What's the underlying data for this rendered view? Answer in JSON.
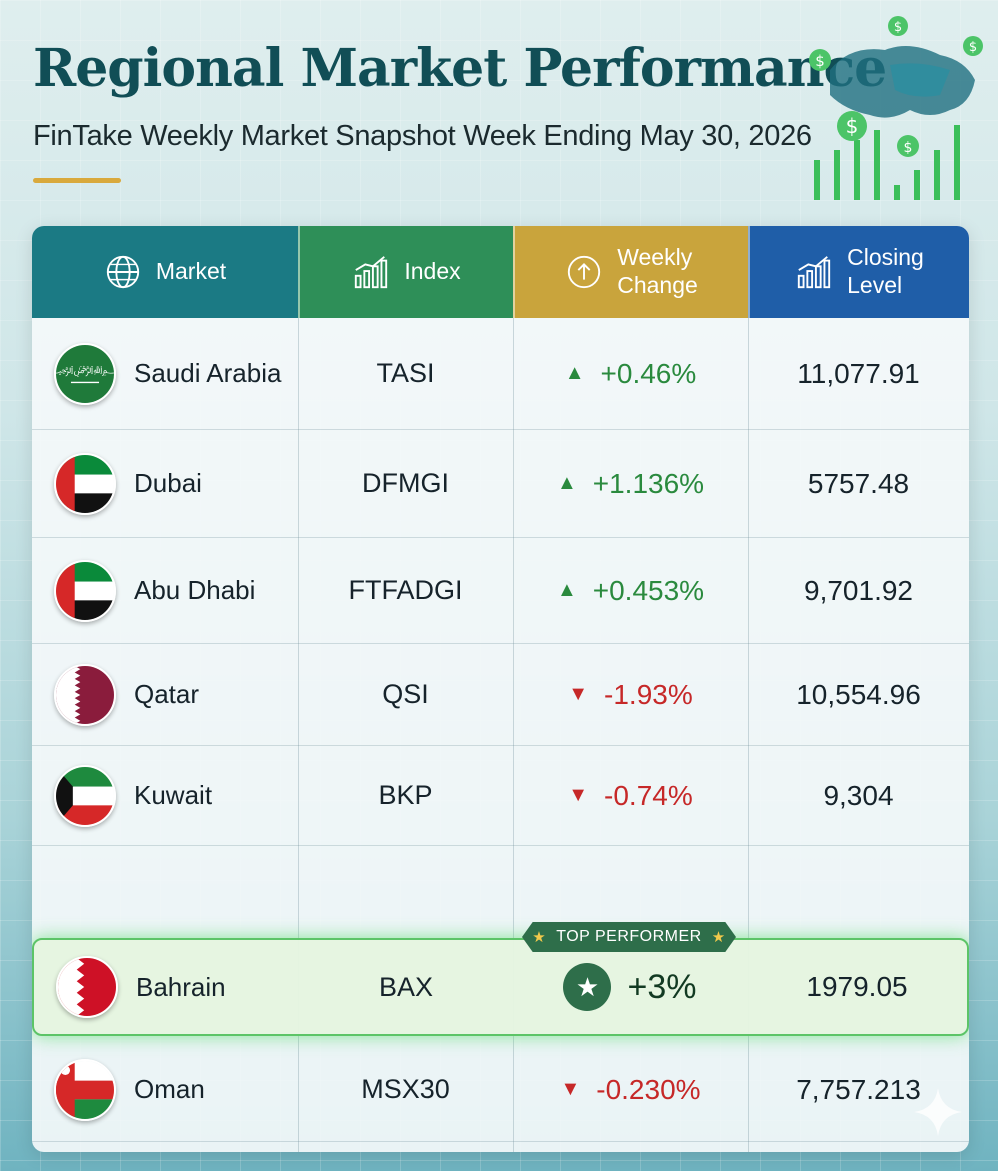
{
  "title": "Regional Market Performance",
  "subtitle": "FinTake Weekly Market Snapshot Week Ending May 30, 2026",
  "colors": {
    "title": "#114e56",
    "header_market": "#1b7a84",
    "header_index": "#2e8f58",
    "header_change": "#c9a43c",
    "header_close": "#1f5ea8",
    "positive": "#2a8a3e",
    "negative": "#c62828",
    "highlight": "#5cc467"
  },
  "table": {
    "headers": {
      "market": "Market",
      "index": "Index",
      "change_line1": "Weekly",
      "change_line2": "Change",
      "close_line1": "Closing",
      "close_line2": "Level"
    },
    "header_icons": {
      "market": "globe-icon",
      "index": "bar-chart-icon",
      "change": "arrow-up-circle-icon",
      "close": "bar-chart-icon"
    },
    "rows": [
      {
        "market": "Saudi Arabia",
        "index": "TASI",
        "change": "+0.46%",
        "direction": "up",
        "close": "11,077.91",
        "flag": "saudi-flag-icon"
      },
      {
        "market": "Dubai",
        "index": "DFMGI",
        "change": "+1.136%",
        "direction": "up",
        "close": "5757.48",
        "flag": "uae-flag-icon"
      },
      {
        "market": "Abu Dhabi",
        "index": "FTFADGI",
        "change": "+0.453%",
        "direction": "up",
        "close": "9,701.92",
        "flag": "uae-flag-icon"
      },
      {
        "market": "Qatar",
        "index": "QSI",
        "change": "-1.93%",
        "direction": "down",
        "close": "10,554.96",
        "flag": "qatar-flag-icon"
      },
      {
        "market": "Kuwait",
        "index": "BKP",
        "change": "-0.74%",
        "direction": "down",
        "close": "9,304",
        "flag": "kuwait-flag-icon"
      },
      {
        "market": "Bahrain",
        "index": "BAX",
        "change": "+3%",
        "direction": "up",
        "close": "1979.05",
        "flag": "bahrain-flag-icon",
        "highlight": true
      },
      {
        "market": "Oman",
        "index": "MSX30",
        "change": "-0.230%",
        "direction": "down",
        "close": "7,757.213",
        "flag": "oman-flag-icon"
      }
    ],
    "top_performer_label": "TOP PERFORMER"
  }
}
